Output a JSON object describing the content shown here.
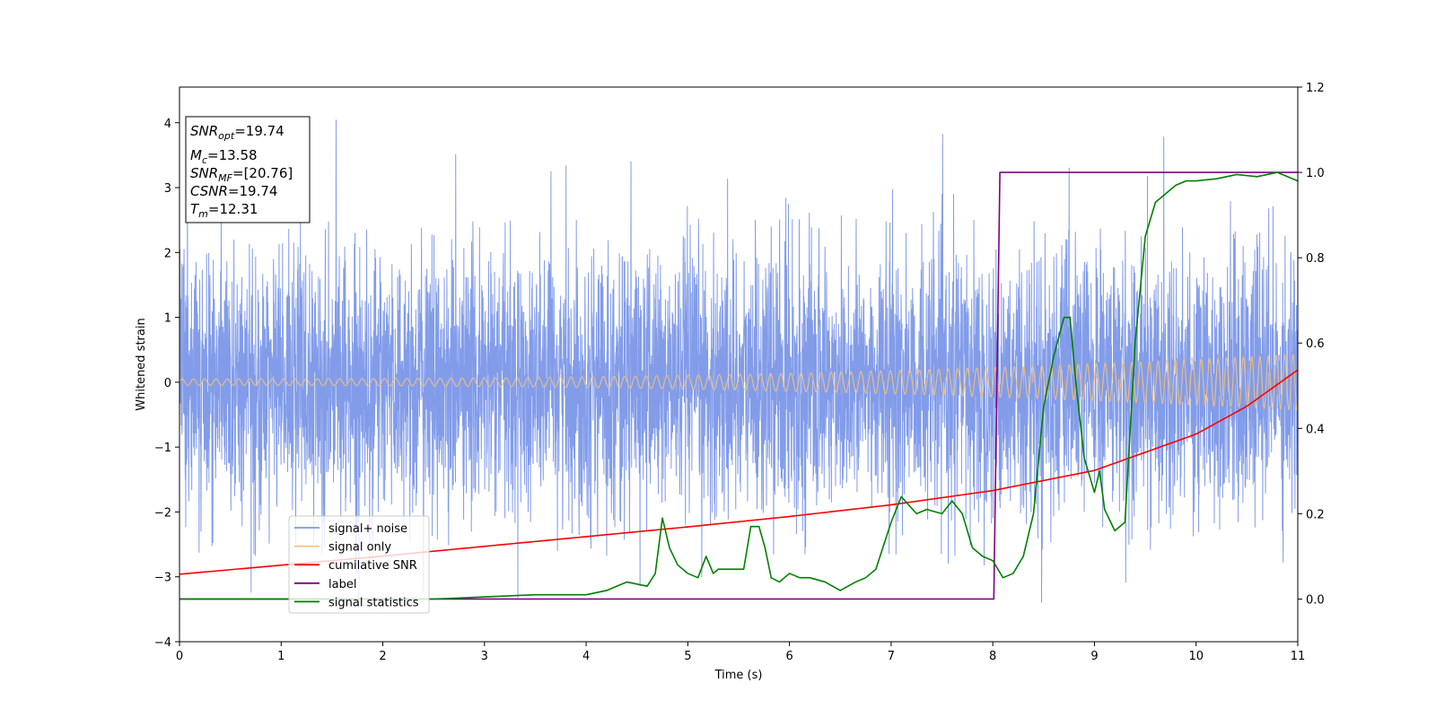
{
  "chart_data": {
    "type": "line",
    "xlabel": "Time (s)",
    "ylabel": "Whitened strain",
    "xlim": [
      0,
      11
    ],
    "ylim_left": [
      -4,
      4.55
    ],
    "ylim_right": [
      -0.1,
      1.2
    ],
    "x_ticks": [
      "0",
      "1",
      "2",
      "3",
      "4",
      "5",
      "6",
      "7",
      "8",
      "9",
      "10",
      "11"
    ],
    "y_ticks_left": [
      "−4",
      "−3",
      "−2",
      "−1",
      "0",
      "1",
      "2",
      "3",
      "4"
    ],
    "y_ticks_right": [
      "0.0",
      "0.2",
      "0.4",
      "0.6",
      "0.8",
      "1.0",
      "1.2"
    ],
    "info_box": {
      "snr_opt": {
        "base": "SNR",
        "sub": "opt",
        "value": "=19.74"
      },
      "mc": {
        "base": "M",
        "sub": "c",
        "value": "=13.58"
      },
      "snr_mf": {
        "base": "SNR",
        "sub": "MF",
        "value": "=[20.76]"
      },
      "csnr": {
        "base": "CSNR",
        "value": "=19.74"
      },
      "tm": {
        "base": "T",
        "sub": "m",
        "value": "=12.31"
      }
    },
    "legend": [
      {
        "label": "signal+ noise",
        "color": "#7b97e8"
      },
      {
        "label": "signal only",
        "color": "#f7c27a"
      },
      {
        "label": "cumilative SNR",
        "color": "#ff0000"
      },
      {
        "label": "label",
        "color": "#800080"
      },
      {
        "label": "signal statistics",
        "color": "#008000"
      }
    ],
    "series": [
      {
        "name": "signal+ noise",
        "axis": "left",
        "style": "noise-band",
        "amplitude_std": 1.0,
        "approx_min": -3.6,
        "approx_max": 4.18
      },
      {
        "name": "signal only",
        "axis": "left",
        "style": "chirp",
        "x_range": [
          0,
          11
        ],
        "amplitude_start": 0.05,
        "amplitude_end": 0.43
      },
      {
        "name": "cumilative SNR",
        "axis": "left",
        "x": [
          0,
          1,
          2,
          3,
          4,
          5,
          6,
          7,
          8,
          9,
          10,
          10.5,
          11
        ],
        "y": [
          -2.96,
          -2.82,
          -2.68,
          -2.53,
          -2.38,
          -2.23,
          -2.07,
          -1.89,
          -1.67,
          -1.36,
          -0.8,
          -0.37,
          0.19
        ]
      },
      {
        "name": "label",
        "axis": "right",
        "x": [
          0,
          8.01,
          8.07,
          11
        ],
        "y": [
          0.0,
          0.0,
          1.0,
          1.0
        ]
      },
      {
        "name": "signal statistics",
        "axis": "right",
        "x": [
          0,
          0.5,
          1,
          1.5,
          2,
          2.5,
          3,
          3.5,
          3.8,
          4.0,
          4.2,
          4.4,
          4.5,
          4.6,
          4.68,
          4.75,
          4.82,
          4.9,
          5.0,
          5.1,
          5.18,
          5.25,
          5.3,
          5.4,
          5.55,
          5.62,
          5.7,
          5.76,
          5.82,
          5.9,
          6.0,
          6.1,
          6.2,
          6.35,
          6.5,
          6.65,
          6.75,
          6.85,
          7.0,
          7.1,
          7.25,
          7.35,
          7.5,
          7.6,
          7.7,
          7.8,
          7.9,
          8.0,
          8.1,
          8.2,
          8.3,
          8.4,
          8.5,
          8.6,
          8.7,
          8.76,
          8.82,
          8.9,
          9.0,
          9.05,
          9.1,
          9.2,
          9.3,
          9.4,
          9.5,
          9.6,
          9.7,
          9.8,
          9.9,
          10.0,
          10.2,
          10.4,
          10.6,
          10.8,
          11.0
        ],
        "y": [
          0.0,
          0.0,
          0.0,
          0.0,
          0.0,
          0.0,
          0.005,
          0.01,
          0.01,
          0.01,
          0.02,
          0.04,
          0.035,
          0.03,
          0.06,
          0.19,
          0.12,
          0.08,
          0.06,
          0.05,
          0.1,
          0.06,
          0.07,
          0.07,
          0.07,
          0.17,
          0.17,
          0.12,
          0.05,
          0.04,
          0.06,
          0.05,
          0.05,
          0.04,
          0.02,
          0.04,
          0.05,
          0.07,
          0.18,
          0.24,
          0.2,
          0.21,
          0.2,
          0.23,
          0.2,
          0.12,
          0.1,
          0.09,
          0.05,
          0.06,
          0.1,
          0.2,
          0.45,
          0.57,
          0.66,
          0.66,
          0.5,
          0.33,
          0.25,
          0.3,
          0.21,
          0.16,
          0.18,
          0.6,
          0.85,
          0.93,
          0.95,
          0.97,
          0.98,
          0.98,
          0.985,
          0.995,
          0.99,
          1.0,
          0.98
        ]
      }
    ]
  }
}
